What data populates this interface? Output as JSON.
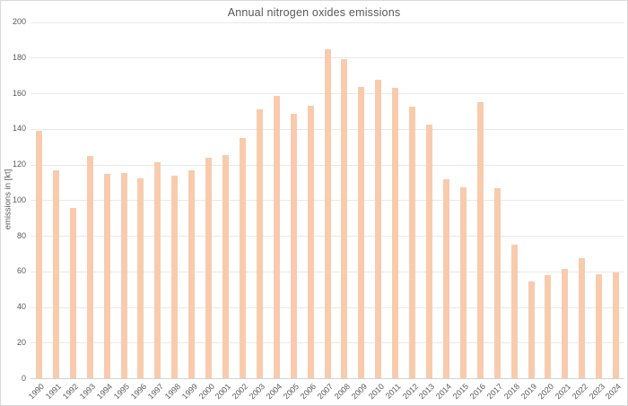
{
  "chart_data": {
    "type": "bar",
    "title": "Annual nitrogen oxides emissions",
    "xlabel": "",
    "ylabel": "emissions in [kt]",
    "categories": [
      "1990",
      "1991",
      "1992",
      "1993",
      "1994",
      "1995",
      "1996",
      "1997",
      "1998",
      "1999",
      "2000",
      "2001",
      "2002",
      "2003",
      "2004",
      "2005",
      "2006",
      "2007",
      "2008",
      "2009",
      "2010",
      "2011",
      "2012",
      "2013",
      "2014",
      "2015",
      "2016",
      "2017",
      "2018",
      "2019",
      "2020",
      "2021",
      "2022",
      "2023",
      "2024"
    ],
    "values": [
      139,
      117,
      95.5,
      125,
      114.5,
      115,
      112,
      121.5,
      113.5,
      117,
      124,
      125.5,
      135,
      151,
      158.5,
      148.5,
      153,
      184.5,
      179,
      163.5,
      167.5,
      163,
      152.5,
      142.5,
      111.5,
      107,
      155,
      106.5,
      75,
      54.5,
      58,
      61.5,
      67.5,
      58.5,
      59.5
    ],
    "ylim": [
      0,
      200
    ],
    "ytick_step": 20,
    "grid": true,
    "legend": "none",
    "bar_color": "#F8CBAD",
    "text_color": "#595959",
    "gridline_color": "#E9E9E9",
    "axis_color": "#D2D2D2",
    "border_color": "#D9D9D9"
  }
}
